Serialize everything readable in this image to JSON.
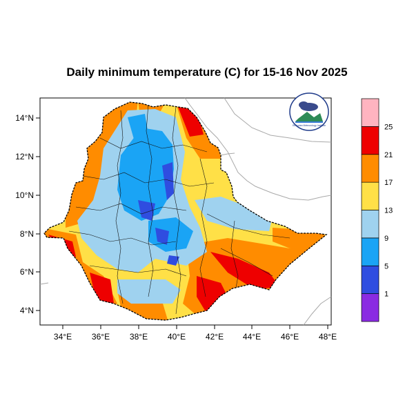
{
  "title": "Daily minimum temperature (C) for 15-16 Nov 2025",
  "map": {
    "lat_ticks": [
      "14°N",
      "12°N",
      "10°N",
      "8°N",
      "6°N",
      "4°N"
    ],
    "lon_ticks": [
      "34°E",
      "36°E",
      "38°E",
      "40°E",
      "42°E",
      "44°E",
      "46°E",
      "48°E"
    ],
    "logo_label": "Ethiopian Meteorology Institute"
  },
  "legend": {
    "labels": [
      "1",
      "5",
      "9",
      "13",
      "17",
      "21",
      "25"
    ],
    "bins": [
      {
        "color": "#8a2be2"
      },
      {
        "color": "#2f4de0"
      },
      {
        "color": "#1aa4f5"
      },
      {
        "color": "#9fd2ef"
      },
      {
        "color": "#ffe047"
      },
      {
        "color": "#ff8c00"
      },
      {
        "color": "#ee0000"
      },
      {
        "color": "#ffb4c0"
      }
    ]
  }
}
